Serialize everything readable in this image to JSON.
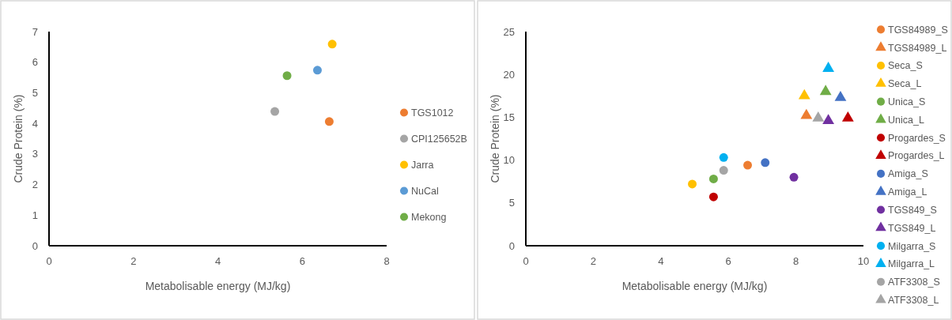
{
  "chart_data": [
    {
      "type": "scatter",
      "xlabel": "Metabolisable energy (MJ/kg)",
      "ylabel": "Crude Protein (%)",
      "xlim": [
        0,
        8
      ],
      "xticks": [
        0,
        2,
        4,
        6,
        8
      ],
      "ylim": [
        0,
        7
      ],
      "yticks": [
        0,
        1,
        2,
        3,
        4,
        5,
        6,
        7
      ],
      "grid": false,
      "legend": "right",
      "marker": "circle",
      "series": [
        {
          "name": "TGS1012",
          "color": "#ed7d31",
          "x": [
            6.64
          ],
          "values": [
            4.06
          ]
        },
        {
          "name": "CPI125652B",
          "color": "#a5a5a5",
          "x": [
            5.35
          ],
          "values": [
            4.39
          ]
        },
        {
          "name": "Jarra",
          "color": "#ffc000",
          "x": [
            6.71
          ],
          "values": [
            6.59
          ]
        },
        {
          "name": "NuCal",
          "color": "#5b9bd5",
          "x": [
            6.36
          ],
          "values": [
            5.74
          ]
        },
        {
          "name": "Mekong",
          "color": "#70ad47",
          "x": [
            5.64
          ],
          "values": [
            5.56
          ]
        }
      ]
    },
    {
      "type": "scatter",
      "xlabel": "Metabolisable energy (MJ/kg)",
      "ylabel": "Crude Protein (%)",
      "xlim": [
        0,
        10
      ],
      "xticks": [
        0,
        2,
        4,
        6,
        8,
        10
      ],
      "ylim": [
        0,
        25
      ],
      "yticks": [
        0,
        5,
        10,
        15,
        20,
        25
      ],
      "grid": false,
      "legend": "right",
      "series": [
        {
          "name": "TGS84989_S",
          "color": "#ed7d31",
          "marker": "circle",
          "x": [
            6.57
          ],
          "values": [
            9.4
          ]
        },
        {
          "name": "TGS84989_L",
          "color": "#ed7d31",
          "marker": "triangle",
          "x": [
            8.31
          ],
          "values": [
            15.2
          ]
        },
        {
          "name": "Seca_S",
          "color": "#ffc000",
          "marker": "circle",
          "x": [
            4.93
          ],
          "values": [
            7.2
          ]
        },
        {
          "name": "Seca_L",
          "color": "#ffc000",
          "marker": "triangle",
          "x": [
            8.25
          ],
          "values": [
            17.5
          ]
        },
        {
          "name": "Unica_S",
          "color": "#70ad47",
          "marker": "circle",
          "x": [
            5.56
          ],
          "values": [
            7.8
          ]
        },
        {
          "name": "Unica_L",
          "color": "#70ad47",
          "marker": "triangle",
          "x": [
            8.88
          ],
          "values": [
            18
          ]
        },
        {
          "name": "Progardes_S",
          "color": "#c00000",
          "marker": "circle",
          "x": [
            5.56
          ],
          "values": [
            5.7
          ]
        },
        {
          "name": "Progardes_L",
          "color": "#c00000",
          "marker": "triangle",
          "x": [
            9.54
          ],
          "values": [
            14.9
          ]
        },
        {
          "name": "Amiga_S",
          "color": "#4472c4",
          "marker": "circle",
          "x": [
            7.09
          ],
          "values": [
            9.7
          ]
        },
        {
          "name": "Amiga_L",
          "color": "#4472c4",
          "marker": "triangle",
          "x": [
            9.32
          ],
          "values": [
            17.3
          ]
        },
        {
          "name": "TGS849_S",
          "color": "#7030a0",
          "marker": "circle",
          "x": [
            7.94
          ],
          "values": [
            8
          ]
        },
        {
          "name": "TGS849_L",
          "color": "#7030a0",
          "marker": "triangle",
          "x": [
            8.96
          ],
          "values": [
            14.6
          ]
        },
        {
          "name": "Milgarra_S",
          "color": "#00b0f0",
          "marker": "circle",
          "x": [
            5.86
          ],
          "values": [
            10.3
          ]
        },
        {
          "name": "Milgarra_L",
          "color": "#00b0f0",
          "marker": "triangle",
          "x": [
            8.96
          ],
          "values": [
            20.7
          ]
        },
        {
          "name": "ATF3308_S",
          "color": "#a5a5a5",
          "marker": "circle",
          "x": [
            5.86
          ],
          "values": [
            8.8
          ]
        },
        {
          "name": "ATF3308_L",
          "color": "#a5a5a5",
          "marker": "triangle",
          "x": [
            8.66
          ],
          "values": [
            14.9
          ]
        }
      ]
    }
  ]
}
